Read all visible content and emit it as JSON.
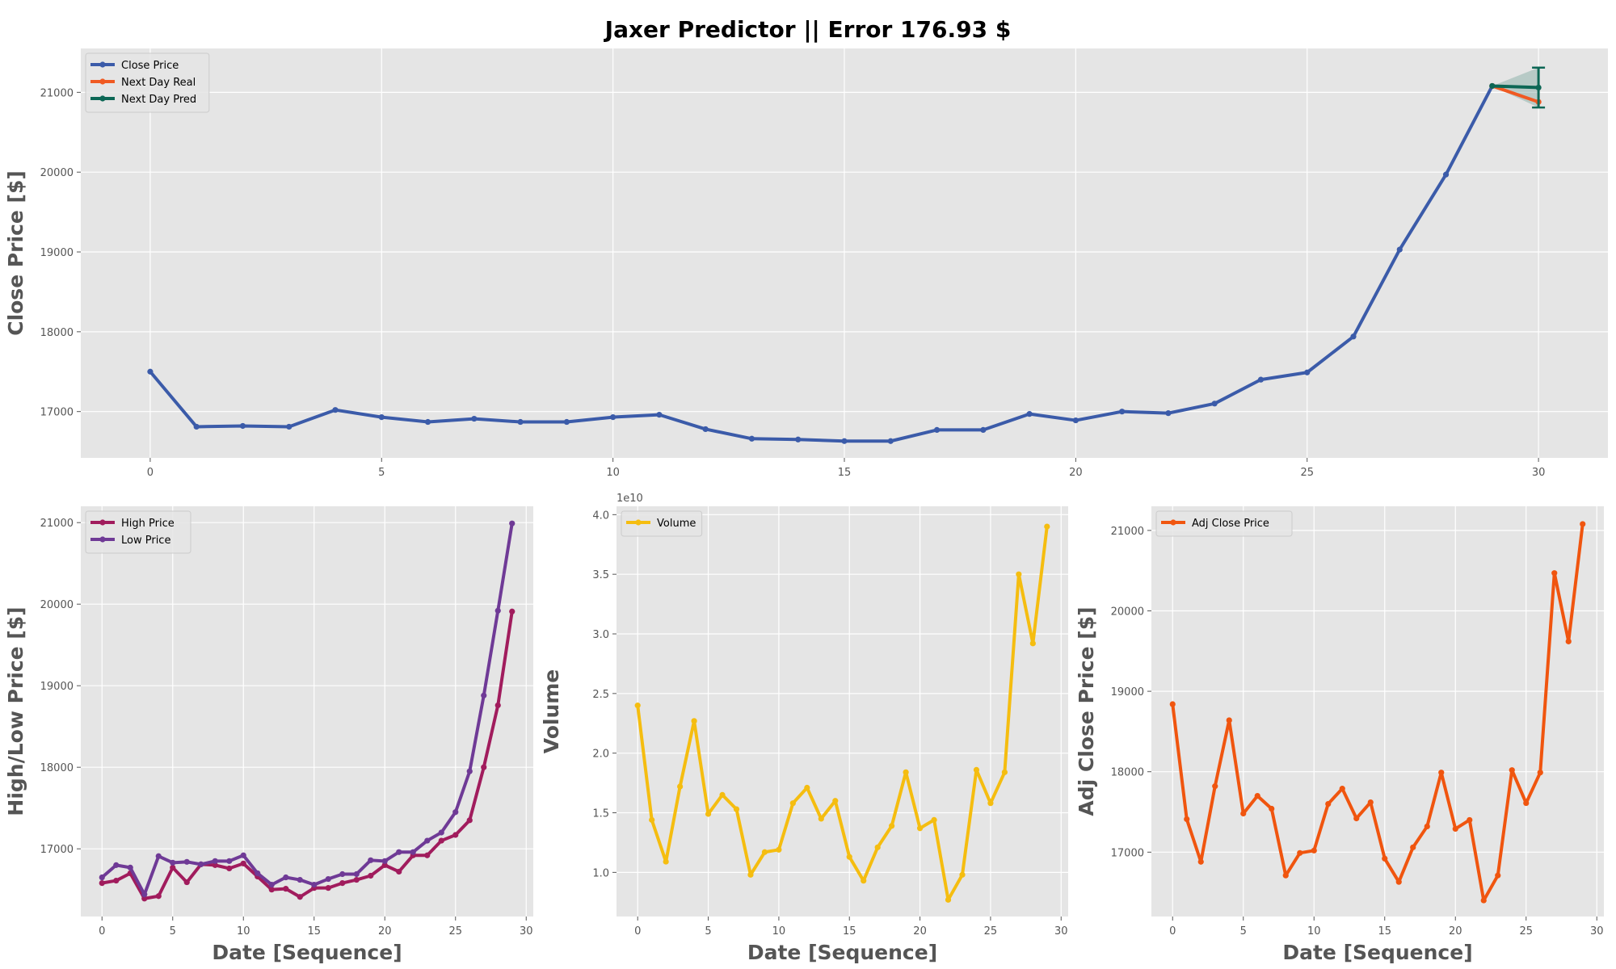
{
  "title": "Jaxer Predictor || Error 176.93 $",
  "colors": {
    "close": "#3b5ba9",
    "next_real": "#f05a22",
    "next_pred": "#0c6755",
    "high": "#a11c5d",
    "low": "#6f3a96",
    "volume": "#f5bd10",
    "adj": "#f0550f",
    "band": "#7fa8a0"
  },
  "chart_data": [
    {
      "type": "line",
      "name": "main",
      "ylabel": "Close Price [$]",
      "xlabel": "",
      "xlim": [
        -1.5,
        31.5
      ],
      "ylim": [
        16420,
        21550
      ],
      "xticks": [
        0,
        5,
        10,
        15,
        20,
        25,
        30
      ],
      "yticks": [
        17000,
        18000,
        19000,
        20000,
        21000
      ],
      "legend": "upper-left",
      "series": [
        {
          "name": "Close Price",
          "x": [
            0,
            1,
            2,
            3,
            4,
            5,
            6,
            7,
            8,
            9,
            10,
            11,
            12,
            13,
            14,
            15,
            16,
            17,
            18,
            19,
            20,
            21,
            22,
            23,
            24,
            25,
            26,
            27,
            28,
            29
          ],
          "y": [
            17500,
            16810,
            16820,
            16810,
            17020,
            16930,
            16870,
            16910,
            16870,
            16870,
            16930,
            16960,
            16780,
            16660,
            16650,
            16630,
            16630,
            16770,
            16770,
            16970,
            16890,
            17000,
            16980,
            17100,
            17400,
            17490,
            17940,
            19030,
            19970,
            21080
          ]
        },
        {
          "name": "Next Day Real",
          "x": [
            29,
            30
          ],
          "y": [
            21080,
            20880
          ]
        },
        {
          "name": "Next Day Pred",
          "x": [
            29,
            30
          ],
          "y": [
            21080,
            21060
          ]
        }
      ],
      "error_bar": {
        "x": 30,
        "center": 21060,
        "low": 20810,
        "high": 21310
      }
    },
    {
      "type": "line",
      "name": "high-low",
      "ylabel": "High/Low Price [$]",
      "xlabel": "Date [Sequence]",
      "xlim": [
        -1.5,
        30.5
      ],
      "ylim": [
        16170,
        21200
      ],
      "xticks": [
        0,
        5,
        10,
        15,
        20,
        25,
        30
      ],
      "yticks": [
        17000,
        18000,
        19000,
        20000,
        21000
      ],
      "legend": "upper-left",
      "series": [
        {
          "name": "High Price",
          "x": [
            0,
            1,
            2,
            3,
            4,
            5,
            6,
            7,
            8,
            9,
            10,
            11,
            12,
            13,
            14,
            15,
            16,
            17,
            18,
            19,
            20,
            21,
            22,
            23,
            24,
            25,
            26,
            27,
            28,
            29
          ],
          "y": [
            16580,
            16610,
            16700,
            16390,
            16420,
            16770,
            16590,
            16810,
            16800,
            16760,
            16820,
            16660,
            16500,
            16510,
            16410,
            16520,
            16520,
            16580,
            16620,
            16670,
            16800,
            16720,
            16920,
            16920,
            17100,
            17170,
            17350,
            18000,
            18760,
            19910
          ]
        },
        {
          "name": "Low Price",
          "x": [
            0,
            1,
            2,
            3,
            4,
            5,
            6,
            7,
            8,
            9,
            10,
            11,
            12,
            13,
            14,
            15,
            16,
            17,
            18,
            19,
            20,
            21,
            22,
            23,
            24,
            25,
            26,
            27,
            28,
            29
          ],
          "y": [
            16650,
            16800,
            16770,
            16440,
            16910,
            16830,
            16840,
            16810,
            16850,
            16850,
            16920,
            16700,
            16560,
            16650,
            16620,
            16560,
            16630,
            16690,
            16690,
            16860,
            16850,
            16960,
            16960,
            17100,
            17200,
            17450,
            17950,
            18880,
            19920,
            20990
          ]
        }
      ]
    },
    {
      "type": "line",
      "name": "volume",
      "ylabel": "Volume",
      "xlabel": "Date [Sequence]",
      "scale_label": "1e10",
      "xlim": [
        -1.5,
        30.5
      ],
      "ylim": [
        0.63,
        4.07
      ],
      "xticks": [
        0,
        5,
        10,
        15,
        20,
        25,
        30
      ],
      "yticks": [
        1.0,
        1.5,
        2.0,
        2.5,
        3.0,
        3.5,
        4.0
      ],
      "ytick_labels": [
        "1.0",
        "1.5",
        "2.0",
        "2.5",
        "3.0",
        "3.5",
        "4.0"
      ],
      "legend": "upper-left",
      "series": [
        {
          "name": "Volume",
          "x": [
            0,
            1,
            2,
            3,
            4,
            5,
            6,
            7,
            8,
            9,
            10,
            11,
            12,
            13,
            14,
            15,
            16,
            17,
            18,
            19,
            20,
            21,
            22,
            23,
            24,
            25,
            26,
            27,
            28,
            29
          ],
          "y": [
            2.4,
            1.44,
            1.09,
            1.72,
            2.27,
            1.49,
            1.65,
            1.53,
            0.98,
            1.17,
            1.19,
            1.58,
            1.71,
            1.45,
            1.6,
            1.13,
            0.93,
            1.21,
            1.39,
            1.84,
            1.37,
            1.44,
            0.77,
            0.98,
            1.86,
            1.58,
            1.84,
            3.5,
            2.92,
            3.9
          ]
        }
      ]
    },
    {
      "type": "line",
      "name": "adj-close",
      "ylabel": "Adj Close Price [$]",
      "xlabel": "Date [Sequence]",
      "xlim": [
        -1.5,
        30.5
      ],
      "ylim": [
        16200,
        21300
      ],
      "xticks": [
        0,
        5,
        10,
        15,
        20,
        25,
        30
      ],
      "yticks": [
        17000,
        18000,
        19000,
        20000,
        21000
      ],
      "legend": "upper-left",
      "series": [
        {
          "name": "Adj Close Price",
          "x": [
            0,
            1,
            2,
            3,
            4,
            5,
            6,
            7,
            8,
            9,
            10,
            11,
            12,
            13,
            14,
            15,
            16,
            17,
            18,
            19,
            20,
            21,
            22,
            23,
            24,
            25,
            26,
            27,
            28,
            29
          ],
          "y": [
            18840,
            17410,
            16880,
            17820,
            18640,
            17480,
            17700,
            17540,
            16710,
            16990,
            17020,
            17600,
            17790,
            17420,
            17620,
            16920,
            16630,
            17060,
            17320,
            17990,
            17290,
            17400,
            16400,
            16710,
            18020,
            17610,
            17990,
            20470,
            19620,
            21080
          ]
        }
      ]
    }
  ]
}
